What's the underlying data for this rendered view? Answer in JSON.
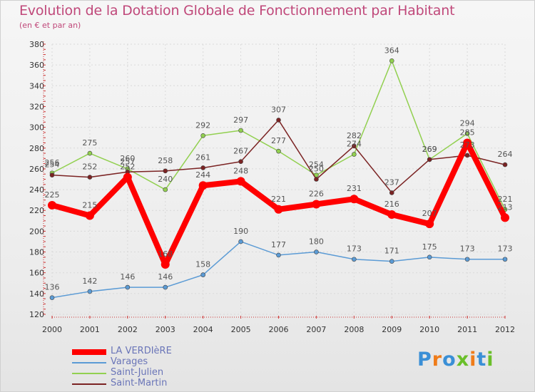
{
  "header": {
    "title": "Evolution de la Dotation Globale de Fonctionnement par Habitant",
    "subtitle": "(en € et par an)"
  },
  "brand": {
    "logo_letters": [
      "P",
      "r",
      "o",
      "x",
      "i",
      "t",
      "i"
    ],
    "logo_colors": [
      "#3a8fd6",
      "#ef7c1a",
      "#3a8fd6",
      "#6abf2a",
      "#ef7c1a",
      "#3a8fd6",
      "#6abf2a"
    ]
  },
  "colors": {
    "la_verdiere": "#ff0000",
    "varages": "#5b9bd5",
    "saint_julien": "#92d050",
    "saint_martin": "#7b2323",
    "axis_text": "#333333",
    "grid": "#d9d9d9"
  },
  "chart_data": {
    "type": "line",
    "title": "Evolution de la Dotation Globale de Fonctionnement par Habitant",
    "subtitle": "(en € et par an)",
    "xlabel": "",
    "ylabel": "",
    "ylim": [
      120,
      380
    ],
    "yticks": [
      120,
      140,
      160,
      180,
      200,
      220,
      240,
      260,
      280,
      300,
      320,
      340,
      360,
      380
    ],
    "x": [
      "2000",
      "2001",
      "2002",
      "2003",
      "2004",
      "2005",
      "2006",
      "2007",
      "2008",
      "2009",
      "2010",
      "2011",
      "2012"
    ],
    "grid": true,
    "legend_position": "bottom-left",
    "series": [
      {
        "key": "la_verdiere",
        "name": "LA VERDIèRE",
        "color": "#ff0000",
        "values": [
          225,
          215,
          252,
          168,
          244,
          248,
          221,
          226,
          231,
          216,
          207,
          285,
          213
        ],
        "labels": [
          "225",
          "215",
          "252",
          "168",
          "244",
          "248",
          "221",
          "226",
          "231",
          "216",
          "207",
          "285",
          "213"
        ]
      },
      {
        "key": "varages",
        "name": "Varages",
        "color": "#5b9bd5",
        "values": [
          136,
          142,
          146,
          146,
          158,
          190,
          177,
          180,
          173,
          171,
          175,
          173,
          173
        ],
        "labels": [
          "136",
          "142",
          "146",
          "146",
          "158",
          "190",
          "177",
          "180",
          "173",
          "171",
          "175",
          "173",
          "173"
        ]
      },
      {
        "key": "saint_julien",
        "name": "Saint-Julien",
        "color": "#92d050",
        "values": [
          256,
          275,
          260,
          240,
          292,
          297,
          277,
          254,
          274,
          364,
          269,
          294,
          221
        ],
        "labels": [
          "256",
          "275",
          "260",
          "240",
          "292",
          "297",
          "277",
          "254",
          "274",
          "364",
          "269",
          "294",
          "221"
        ]
      },
      {
        "key": "saint_martin",
        "name": "Saint-Martin",
        "color": "#7b2323",
        "values": [
          254,
          252,
          257,
          258,
          261,
          267,
          307,
          250,
          282,
          237,
          269,
          273,
          264
        ],
        "labels": [
          "254",
          "252",
          "257",
          "258",
          "261",
          "267",
          "307",
          "250",
          "282",
          "237",
          "269",
          "273",
          "264"
        ]
      }
    ]
  }
}
